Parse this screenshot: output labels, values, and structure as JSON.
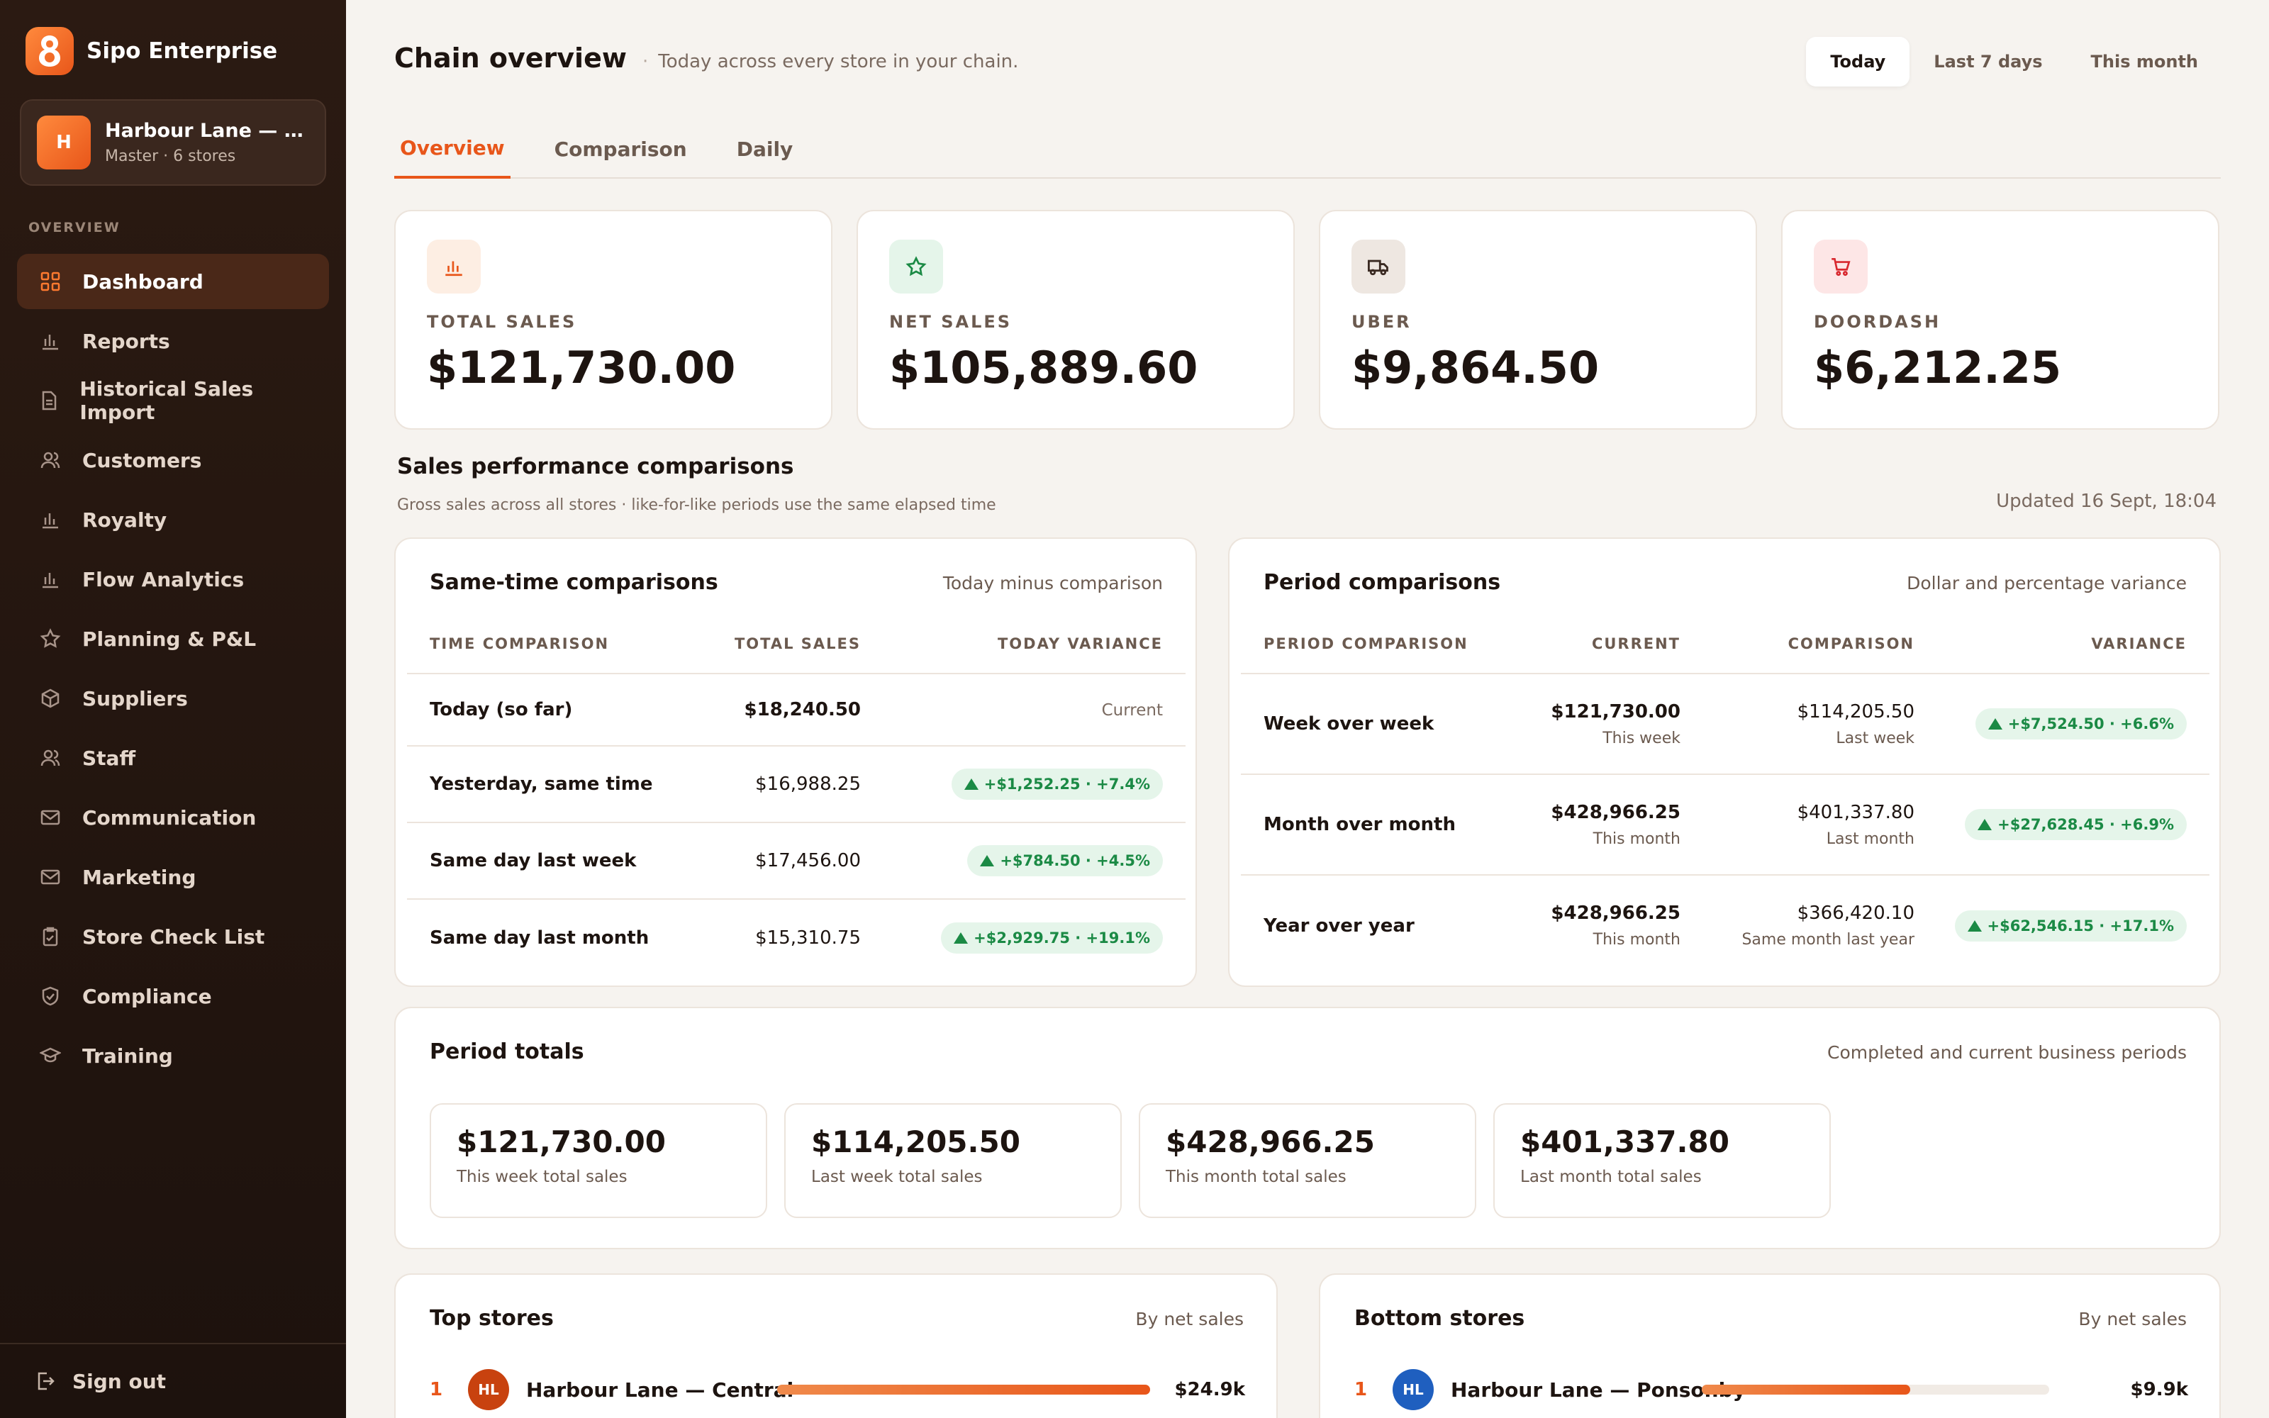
{
  "app": {
    "name": "Sipo Enterprise"
  },
  "store": {
    "avatar": "H",
    "name": "Harbour Lane — Central",
    "sub": "Master · 6 stores"
  },
  "nav": {
    "section": "OVERVIEW",
    "items": [
      {
        "label": "Dashboard",
        "icon": "grid-icon",
        "active": true
      },
      {
        "label": "Reports",
        "icon": "bar-chart-icon"
      },
      {
        "label": "Historical Sales Import",
        "icon": "document-icon"
      },
      {
        "label": "Customers",
        "icon": "users-icon"
      },
      {
        "label": "Royalty",
        "icon": "bar-chart-icon"
      },
      {
        "label": "Flow Analytics",
        "icon": "bar-chart-icon"
      },
      {
        "label": "Planning & P&L",
        "icon": "star-icon"
      },
      {
        "label": "Suppliers",
        "icon": "box-icon"
      },
      {
        "label": "Staff",
        "icon": "users-icon"
      },
      {
        "label": "Communication",
        "icon": "mail-icon"
      },
      {
        "label": "Marketing",
        "icon": "mail-icon"
      },
      {
        "label": "Store Check List",
        "icon": "clipboard-icon"
      },
      {
        "label": "Compliance",
        "icon": "shield-icon"
      },
      {
        "label": "Training",
        "icon": "graduation-cap-icon"
      }
    ],
    "signout": "Sign out"
  },
  "header": {
    "title": "Chain overview",
    "subtitle": "Today across every store in your chain.",
    "ranges": [
      "Today",
      "Last 7 days",
      "This month"
    ],
    "active_range": "Today"
  },
  "tabs": [
    "Overview",
    "Comparison",
    "Daily"
  ],
  "kpis": [
    {
      "label": "TOTAL SALES",
      "value": "$121,730.00",
      "icon": "bar-chart-icon",
      "color": "#e8561a",
      "bg": "#fdeee3"
    },
    {
      "label": "NET SALES",
      "value": "$105,889.60",
      "icon": "star-icon",
      "color": "#1b8a45",
      "bg": "#e5f5ea"
    },
    {
      "label": "UBER",
      "value": "$9,864.50",
      "icon": "truck-icon",
      "color": "#3a2a22",
      "bg": "#eee7e1"
    },
    {
      "label": "DOORDASH",
      "value": "$6,212.25",
      "icon": "cart-icon",
      "color": "#d8282f",
      "bg": "#fde6e6"
    }
  ],
  "performance": {
    "title": "Sales performance comparisons",
    "subtitle": "Gross sales across all stores · like-for-like periods use the same elapsed time",
    "updated": "Updated 16 Sept, 18:04"
  },
  "same_time": {
    "title": "Same-time comparisons",
    "note": "Today minus comparison",
    "headers": [
      "TIME COMPARISON",
      "TOTAL SALES",
      "TODAY VARIANCE"
    ],
    "rows": [
      {
        "label": "Today (so far)",
        "sales": "$18,240.50",
        "variance": "Current"
      },
      {
        "label": "Yesterday, same time",
        "sales": "$16,988.25",
        "variance": "+$1,252.25 · +7.4%"
      },
      {
        "label": "Same day last week",
        "sales": "$17,456.00",
        "variance": "+$784.50 · +4.5%"
      },
      {
        "label": "Same day last month",
        "sales": "$15,310.75",
        "variance": "+$2,929.75 · +19.1%"
      }
    ]
  },
  "period_comp": {
    "title": "Period comparisons",
    "note": "Dollar and percentage variance",
    "headers": [
      "PERIOD COMPARISON",
      "CURRENT",
      "COMPARISON",
      "VARIANCE"
    ],
    "rows": [
      {
        "label": "Week over week",
        "current": "$121,730.00",
        "current_sub": "This week",
        "comparison": "$114,205.50",
        "comparison_sub": "Last week",
        "variance": "+$7,524.50 · +6.6%"
      },
      {
        "label": "Month over month",
        "current": "$428,966.25",
        "current_sub": "This month",
        "comparison": "$401,337.80",
        "comparison_sub": "Last month",
        "variance": "+$27,628.45 · +6.9%"
      },
      {
        "label": "Year over year",
        "current": "$428,966.25",
        "current_sub": "This month",
        "comparison": "$366,420.10",
        "comparison_sub": "Same month last year",
        "variance": "+$62,546.15 · +17.1%"
      }
    ]
  },
  "period_totals": {
    "title": "Period totals",
    "note": "Completed and current business periods",
    "boxes": [
      {
        "value": "$121,730.00",
        "label": "This week total sales"
      },
      {
        "value": "$114,205.50",
        "label": "Last week total sales"
      },
      {
        "value": "$428,966.25",
        "label": "This month total sales"
      },
      {
        "value": "$401,337.80",
        "label": "Last month total sales"
      }
    ]
  },
  "top_stores": {
    "title": "Top stores",
    "note": "By net sales",
    "rows": [
      {
        "rank": "1",
        "initials": "HL",
        "name": "Harbour Lane — Central",
        "value": "$24.9k",
        "fraction": 1.0,
        "color": "#c8420f"
      }
    ]
  },
  "bottom_stores": {
    "title": "Bottom stores",
    "note": "By net sales",
    "rows": [
      {
        "rank": "1",
        "initials": "HL",
        "name": "Harbour Lane — Ponsonby",
        "value": "$9.9k",
        "fraction": 0.6,
        "color": "#1f5fbf"
      }
    ]
  }
}
